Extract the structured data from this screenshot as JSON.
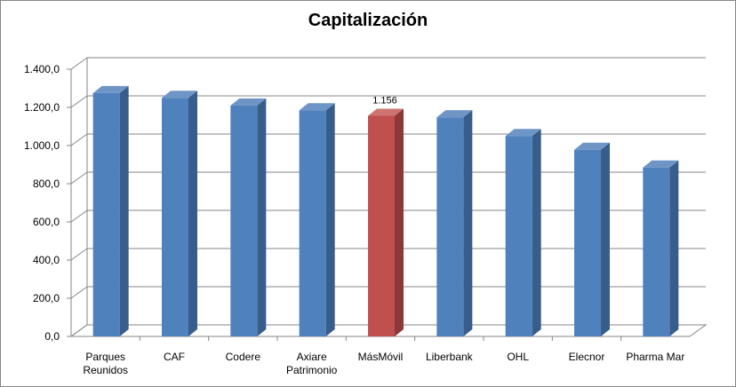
{
  "chart_data": {
    "type": "bar",
    "title": "Capitalización",
    "categories": [
      "Parques Reunidos",
      "CAF",
      "Codere",
      "Axiare Patrimonio",
      "MásMóvil",
      "Liberbank",
      "OHL",
      "Elecnor",
      "Pharma Mar"
    ],
    "category_lines": [
      [
        "Parques",
        "Reunidos"
      ],
      [
        "CAF"
      ],
      [
        "Codere"
      ],
      [
        "Axiare",
        "Patrimonio"
      ],
      [
        "MásMóvil"
      ],
      [
        "Liberbank"
      ],
      [
        "OHL"
      ],
      [
        "Elecnor"
      ],
      [
        "Pharma Mar"
      ]
    ],
    "values": [
      1275,
      1250,
      1210,
      1185,
      1156,
      1148,
      1050,
      978,
      885
    ],
    "ylim": [
      0,
      1400
    ],
    "yticks": [
      "0,0",
      "200,0",
      "400,0",
      "600,0",
      "800,0",
      "1.000,0",
      "1.200,0",
      "1.400,0"
    ],
    "data_labels": [
      {
        "index": 4,
        "text": "1.156"
      }
    ],
    "highlight_index": 4,
    "grid": true,
    "legend": "none",
    "three_d": true,
    "colors": {
      "bar_front": "#4f81bd",
      "bar_top": "#6f95c6",
      "bar_side": "#385d8a",
      "highlight_front": "#c0504d",
      "highlight_top": "#cd7370",
      "highlight_side": "#8c3836",
      "grid": "#868686",
      "axis": "#868686"
    }
  }
}
